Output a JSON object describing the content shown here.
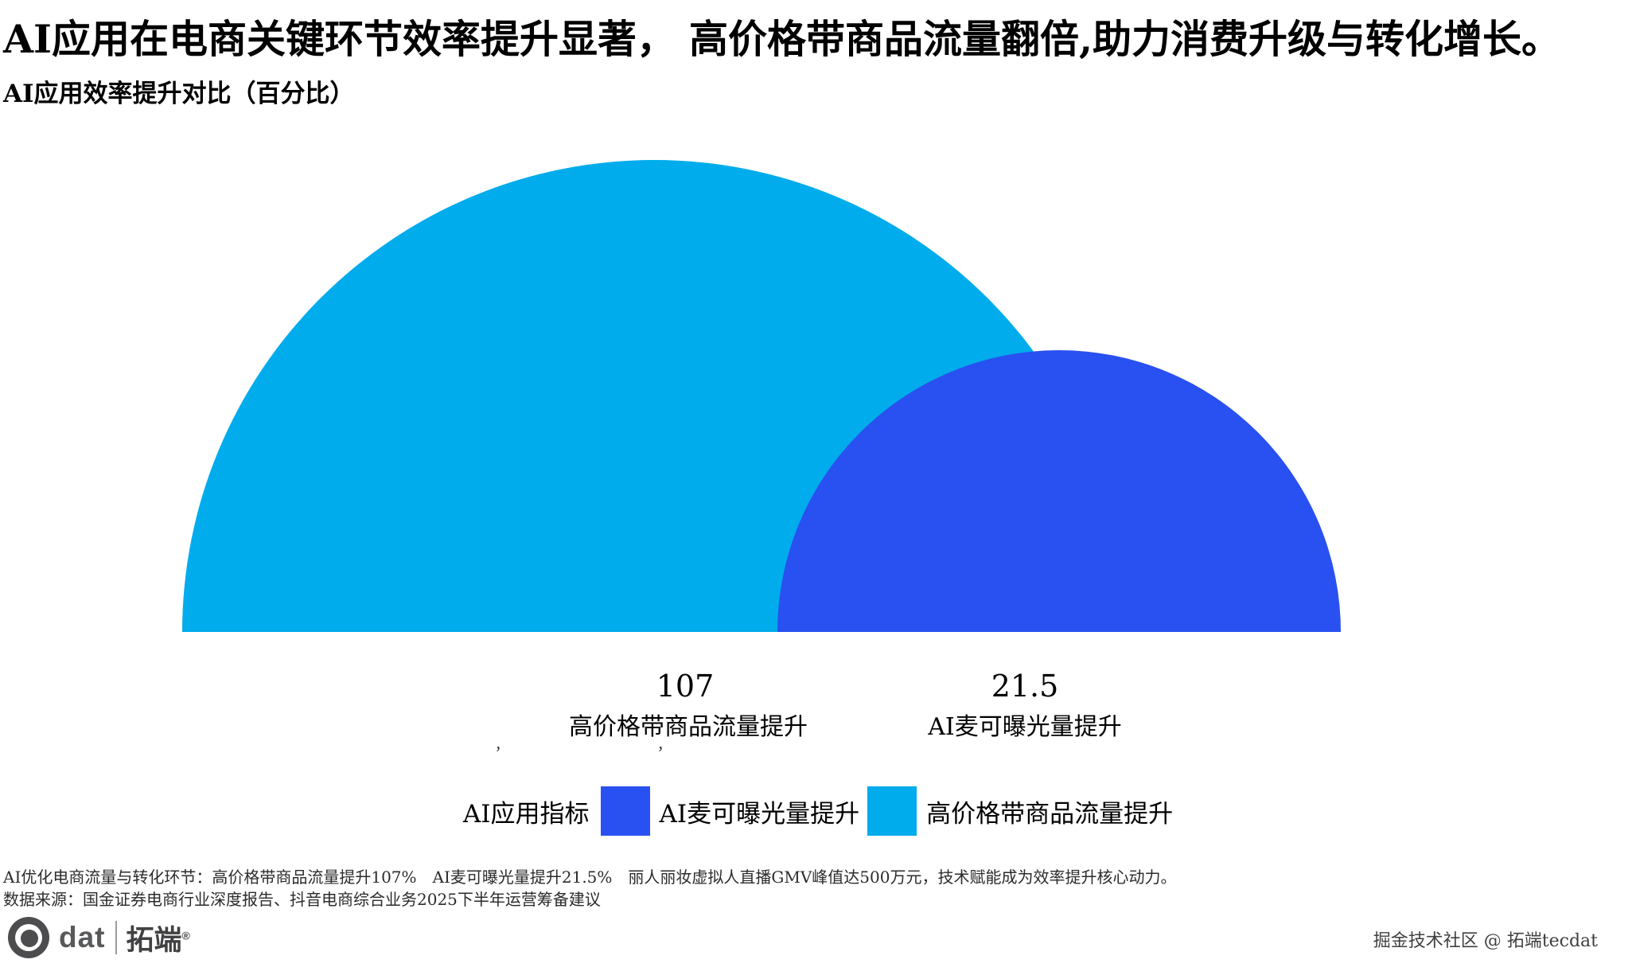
{
  "header": {
    "title": "AI应用在电商关键环节效率提升显著， 高价格带商品流量翻倍,助力消费升级与转化增长。",
    "subtitle": "AI应用效率提升对比（百分比）"
  },
  "chart_data": {
    "type": "area",
    "subtype": "semicircle-comparison",
    "title": "AI应用效率提升对比（百分比）",
    "unit": "percent",
    "series": [
      {
        "name": "高价格带商品流量提升",
        "value": 107,
        "value_label": "107",
        "color": "#00ACEC"
      },
      {
        "name": "AI麦可曝光量提升",
        "value": 21.5,
        "value_label": "21.5",
        "color": "#2950F0"
      }
    ],
    "baseline_marks": [
      "，",
      "，"
    ],
    "legend": {
      "position": "bottom-center",
      "title": "AI应用指标",
      "items": [
        {
          "label": "AI麦可曝光量提升",
          "color": "#2950F0"
        },
        {
          "label": "高价格带商品流量提升",
          "color": "#00ACEC"
        }
      ]
    },
    "grid": false
  },
  "footnotes": {
    "line1": "AI优化电商流量与转化环节：高价格带商品流量提升107%　AI麦可曝光量提升21.5%　丽人丽妆虚拟人直播GMV峰值达500万元，技术赋能成为效率提升核心动力。",
    "line2": "数据来源：国金证券电商行业深度报告、抖音电商综合业务2025下半年运营筹备建议"
  },
  "footer": {
    "logo_text": "dat",
    "logo_brand": "拓端",
    "logo_reg": "®",
    "credit": "掘金技术社区 @ 拓端tecdat"
  }
}
